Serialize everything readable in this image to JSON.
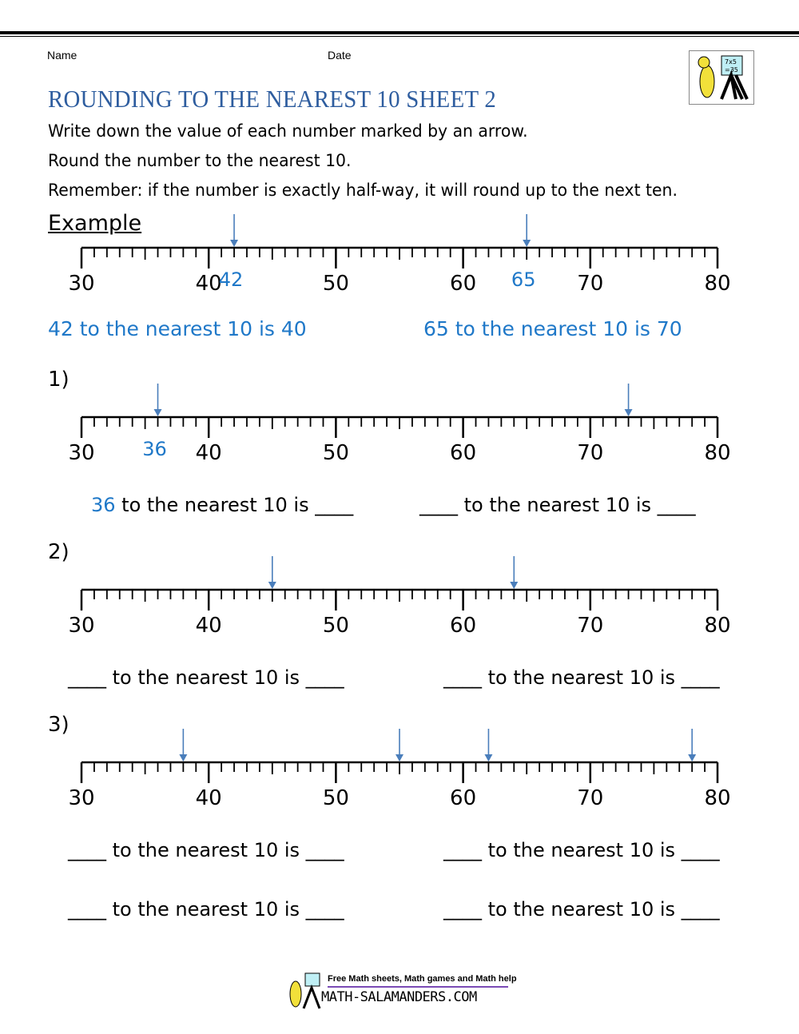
{
  "header": {
    "name_label": "Name",
    "date_label": "Date"
  },
  "title": "ROUNDING TO THE NEAREST 10 SHEET 2",
  "instructions": [
    "Write down the value of each number marked by an arrow.",
    "Round the number to the nearest 10.",
    "Remember: if the number is exactly half-way, it will round up to the next ten."
  ],
  "example": {
    "heading": "Example",
    "arrow_values": [
      42,
      65
    ],
    "arrow_labels": [
      "42",
      "65"
    ],
    "answers": [
      "42 to the nearest 10 is 40",
      "65 to the nearest 10 is 70"
    ]
  },
  "number_line": {
    "min": 30,
    "max": 80,
    "major_labels": [
      "30",
      "40",
      "50",
      "60",
      "70",
      "80"
    ]
  },
  "questions": [
    {
      "label": "1)",
      "arrow_values": [
        36,
        73
      ],
      "arrow_labels": [
        "36"
      ],
      "answer_lines": [
        {
          "prefix": "36",
          "text": " to the nearest 10 is ____"
        },
        {
          "prefix": "",
          "text": "____ to the nearest 10 is ____"
        }
      ]
    },
    {
      "label": "2)",
      "arrow_values": [
        45,
        64
      ],
      "answer_lines": [
        {
          "prefix": "",
          "text": "____ to the nearest 10 is ____"
        },
        {
          "prefix": "",
          "text": "____ to the nearest 10 is ____"
        }
      ]
    },
    {
      "label": "3)",
      "arrow_values": [
        38,
        55,
        62,
        78
      ],
      "answer_lines": [
        {
          "prefix": "",
          "text": "____ to the nearest 10 is ____"
        },
        {
          "prefix": "",
          "text": "____ to the nearest 10 is ____"
        },
        {
          "prefix": "",
          "text": "____ to the nearest 10 is ____"
        },
        {
          "prefix": "",
          "text": "____ to the nearest 10 is ____"
        }
      ]
    }
  ],
  "footer": {
    "tagline": "Free Math sheets, Math games and Math help",
    "site": "MATH-SALAMANDERS.COM"
  },
  "colors": {
    "title": "#2e5d9f",
    "answer": "#1f78c8",
    "arrow": "#4a7ebb"
  }
}
